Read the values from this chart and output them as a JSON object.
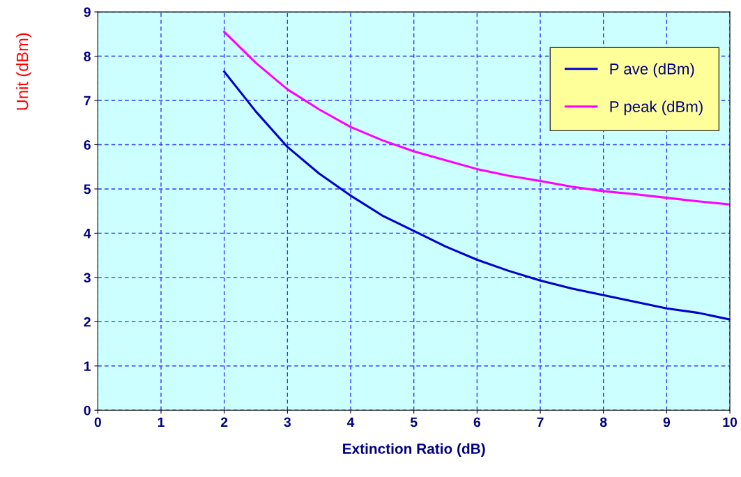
{
  "chart_data": {
    "type": "line",
    "xlabel": "Extinction Ratio (dB)",
    "ylabel": "Unit (dBm)",
    "x": [
      2,
      2.5,
      3,
      3.5,
      4,
      4.5,
      5,
      5.5,
      6,
      6.5,
      7,
      7.5,
      8,
      8.5,
      9,
      9.5,
      10
    ],
    "series": [
      {
        "name": "P ave (dBm)",
        "color": "#0000cc",
        "values": [
          7.65,
          6.75,
          5.95,
          5.35,
          4.85,
          4.4,
          4.05,
          3.7,
          3.4,
          3.15,
          2.93,
          2.75,
          2.6,
          2.45,
          2.3,
          2.2,
          2.05
        ]
      },
      {
        "name": "P peak (dBm)",
        "color": "#ff00ff",
        "values": [
          8.55,
          7.85,
          7.25,
          6.8,
          6.4,
          6.1,
          5.85,
          5.65,
          5.45,
          5.3,
          5.18,
          5.05,
          4.95,
          4.88,
          4.8,
          4.72,
          4.65
        ]
      }
    ],
    "xlim": [
      0,
      10
    ],
    "xticks": [
      0,
      1,
      2,
      3,
      4,
      5,
      6,
      7,
      8,
      9,
      10
    ],
    "ylim": [
      0,
      9
    ],
    "yticks": [
      0,
      1,
      2,
      3,
      4,
      5,
      6,
      7,
      8,
      9
    ],
    "grid": true,
    "legend": "top right",
    "line_style": "solid",
    "marker": "none"
  }
}
